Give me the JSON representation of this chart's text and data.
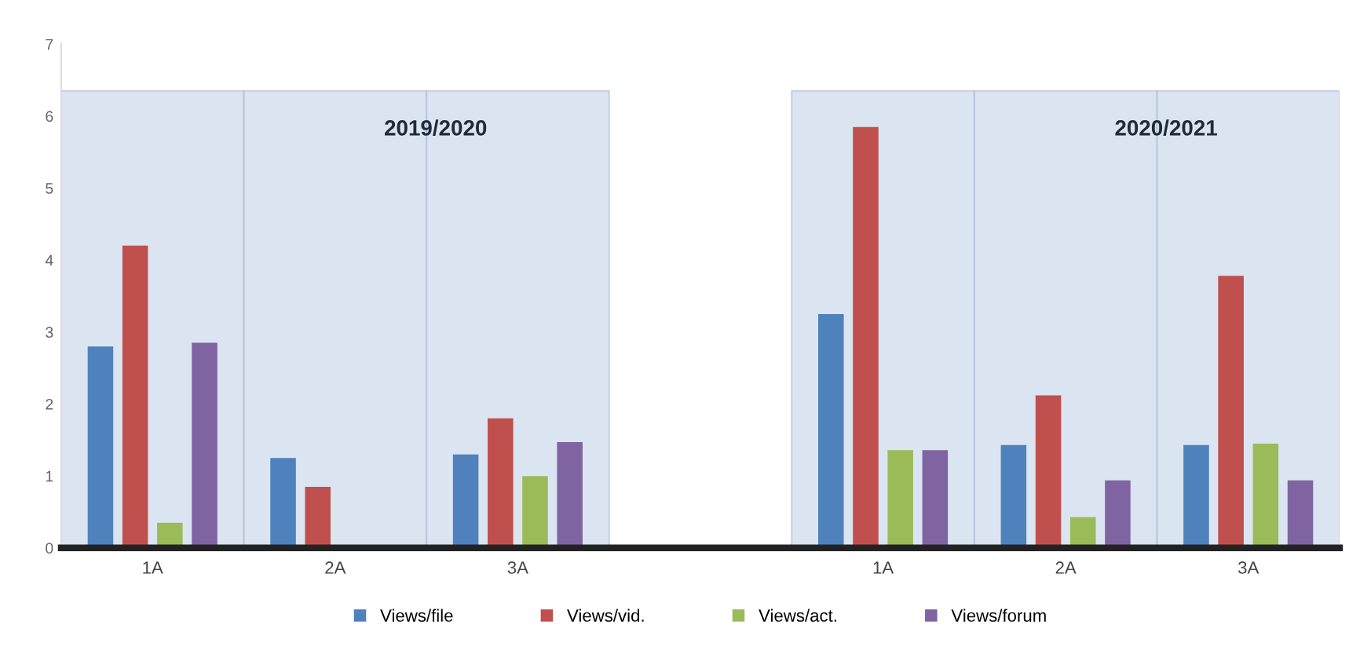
{
  "chart_data": {
    "type": "bar",
    "categories": [
      "1A",
      "2A",
      "3A",
      null,
      "1A",
      "2A",
      "3A"
    ],
    "series": [
      {
        "name": "Views/file",
        "color": "#4f81bd",
        "values": [
          2.8,
          1.25,
          1.3,
          null,
          3.25,
          1.43,
          1.43
        ]
      },
      {
        "name": "Views/vid.",
        "color": "#c0504d",
        "values": [
          4.2,
          0.85,
          1.8,
          null,
          5.85,
          2.12,
          3.78
        ]
      },
      {
        "name": "Views/act.",
        "color": "#9bbb59",
        "values": [
          0.35,
          null,
          1.0,
          null,
          1.36,
          0.43,
          1.45
        ]
      },
      {
        "name": "Views/forum",
        "color": "#8064a2",
        "values": [
          2.85,
          null,
          1.47,
          null,
          1.36,
          0.94,
          0.94
        ]
      }
    ],
    "annotations": [
      "2019/2020",
      "2020/2021"
    ],
    "ylim": [
      0,
      7
    ],
    "yticks": [
      0,
      1,
      2,
      3,
      4,
      5,
      6,
      7
    ],
    "grid": false,
    "legend": "bottom"
  }
}
